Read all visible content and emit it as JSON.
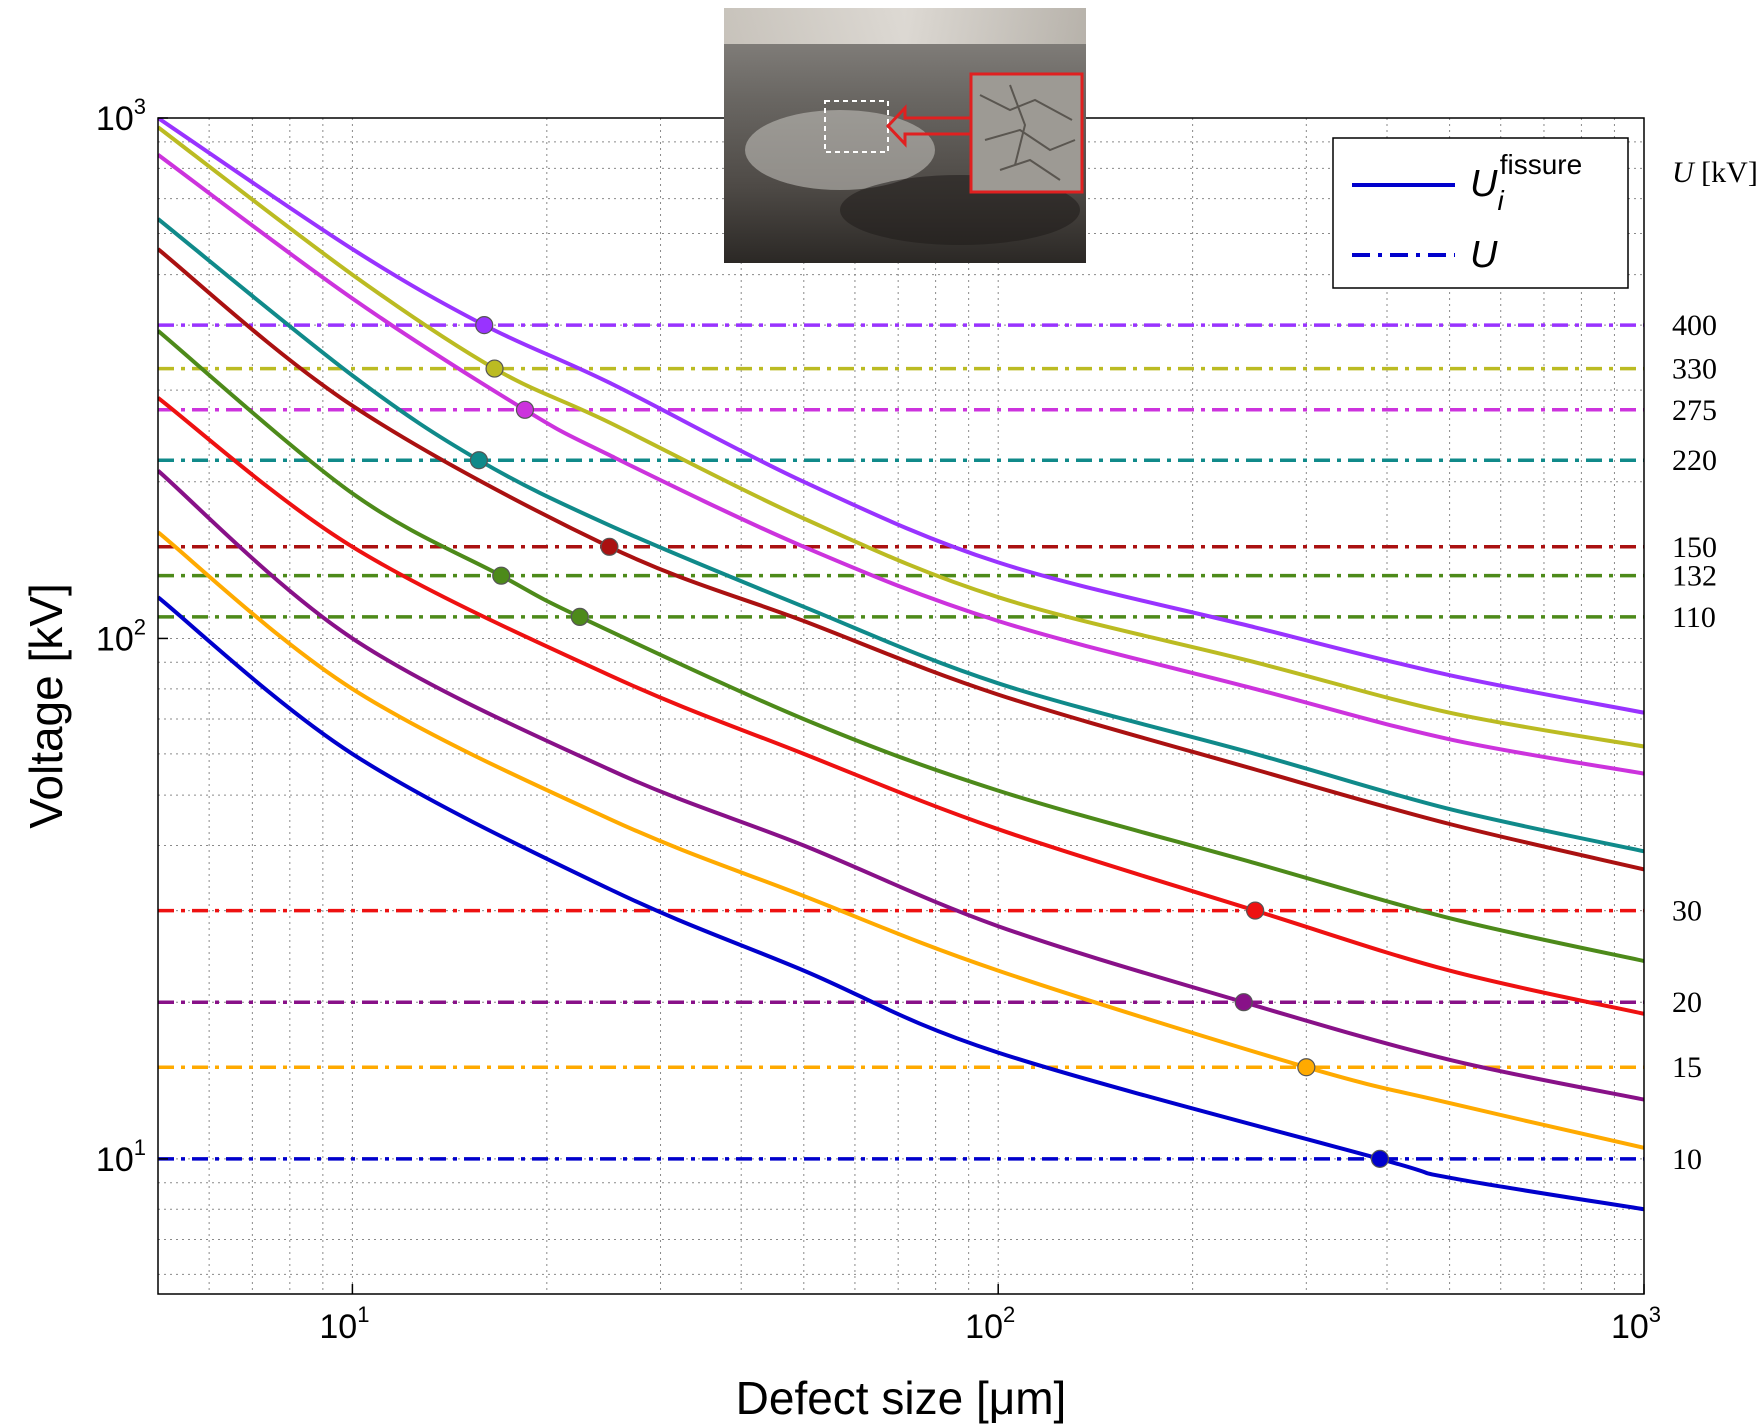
{
  "chart_data": {
    "type": "line",
    "title": "",
    "xlabel": "Defect size [μm]",
    "ylabel": "Voltage [kV]",
    "xscale": "log",
    "yscale": "log",
    "xlim": [
      5,
      1000
    ],
    "ylim": [
      5.5,
      1000
    ],
    "grid": true,
    "x_ticks": [
      {
        "base": "10",
        "exp": "1",
        "value": 10
      },
      {
        "base": "10",
        "exp": "2",
        "value": 100
      },
      {
        "base": "10",
        "exp": "3",
        "value": 1000
      }
    ],
    "y_ticks": [
      {
        "base": "10",
        "exp": "1",
        "value": 10
      },
      {
        "base": "10",
        "exp": "2",
        "value": 100
      },
      {
        "base": "10",
        "exp": "3",
        "value": 1000
      }
    ],
    "right_axis_title": {
      "var": "U",
      "unit": " [kV]"
    },
    "legend": {
      "position": "top-right",
      "entries": [
        {
          "symbol": "U",
          "sub": "i",
          "sup": "fissure",
          "style": "solid",
          "color": "#0000cc"
        },
        {
          "symbol": "U",
          "sub": "",
          "sup": "",
          "style": "dash-dot",
          "color": "#0000cc"
        }
      ]
    },
    "voltage_levels": [
      {
        "label": "400",
        "value": 400,
        "color": "#9933ff",
        "marker_x": 16
      },
      {
        "label": "330",
        "value": 330,
        "color": "#bbbb22",
        "marker_x": 16.6
      },
      {
        "label": "275",
        "value": 275,
        "color": "#cc33dd",
        "marker_x": 18.5
      },
      {
        "label": "220",
        "value": 220,
        "color": "#108a8a",
        "marker_x": 15.7
      },
      {
        "label": "150",
        "value": 150,
        "color": "#aa1111",
        "marker_x": 25
      },
      {
        "label": "132",
        "value": 132,
        "color": "#4d8a1a",
        "marker_x": 17
      },
      {
        "label": "110",
        "value": 110,
        "color": "#4d8a1a",
        "marker_x": 22.5
      },
      {
        "label": "30",
        "value": 30,
        "color": "#ee1111",
        "marker_x": 250
      },
      {
        "label": "20",
        "value": 20,
        "color": "#881188",
        "marker_x": 240
      },
      {
        "label": "15",
        "value": 15,
        "color": "#ffaa00",
        "marker_x": 300
      },
      {
        "label": "10",
        "value": 10,
        "color": "#0000cc",
        "marker_x": 390
      }
    ],
    "series": [
      {
        "color": "#9933ff",
        "x": [
          5,
          10,
          16,
          25,
          50,
          100,
          250,
          500,
          1000
        ],
        "y": [
          1000,
          560,
          400,
          310,
          200,
          140,
          105,
          85,
          72
        ]
      },
      {
        "color": "#bbbb22",
        "x": [
          5,
          10,
          16.6,
          25,
          50,
          100,
          250,
          500,
          1000
        ],
        "y": [
          960,
          500,
          330,
          260,
          170,
          120,
          90,
          72,
          62
        ]
      },
      {
        "color": "#cc33dd",
        "x": [
          5,
          10,
          18.5,
          25,
          50,
          100,
          250,
          500,
          1000
        ],
        "y": [
          850,
          450,
          275,
          225,
          150,
          108,
          80,
          64,
          55
        ]
      },
      {
        "color": "#108a8a",
        "x": [
          5,
          10,
          15.7,
          25,
          50,
          100,
          250,
          500,
          1000
        ],
        "y": [
          640,
          320,
          220,
          165,
          115,
          82,
          60,
          47,
          39
        ]
      },
      {
        "color": "#aa1111",
        "x": [
          5,
          10,
          25,
          50,
          100,
          250,
          500,
          1000
        ],
        "y": [
          560,
          280,
          150,
          108,
          78,
          56,
          44,
          36
        ]
      },
      {
        "color": "#4d8a1a",
        "x": [
          5,
          10,
          17,
          22.5,
          50,
          100,
          250,
          500,
          1000
        ],
        "y": [
          390,
          190,
          132,
          110,
          70,
          51,
          37,
          29,
          24
        ]
      },
      {
        "color": "#ee1111",
        "x": [
          5,
          10,
          25,
          50,
          100,
          250,
          500,
          1000
        ],
        "y": [
          290,
          150,
          85,
          60,
          43,
          30,
          23,
          19
        ]
      },
      {
        "color": "#881188",
        "x": [
          5,
          10,
          25,
          50,
          100,
          240,
          500,
          1000
        ],
        "y": [
          210,
          100,
          56,
          40,
          28,
          20,
          15.5,
          13
        ]
      },
      {
        "color": "#ffaa00",
        "x": [
          5,
          10,
          25,
          50,
          100,
          300,
          500,
          1000
        ],
        "y": [
          160,
          80,
          45,
          32,
          23,
          15,
          12.8,
          10.5
        ]
      },
      {
        "color": "#0000cc",
        "x": [
          5,
          10,
          25,
          50,
          100,
          390,
          500,
          1000
        ],
        "y": [
          120,
          60,
          33,
          23,
          16,
          10,
          9.2,
          8
        ]
      }
    ]
  }
}
